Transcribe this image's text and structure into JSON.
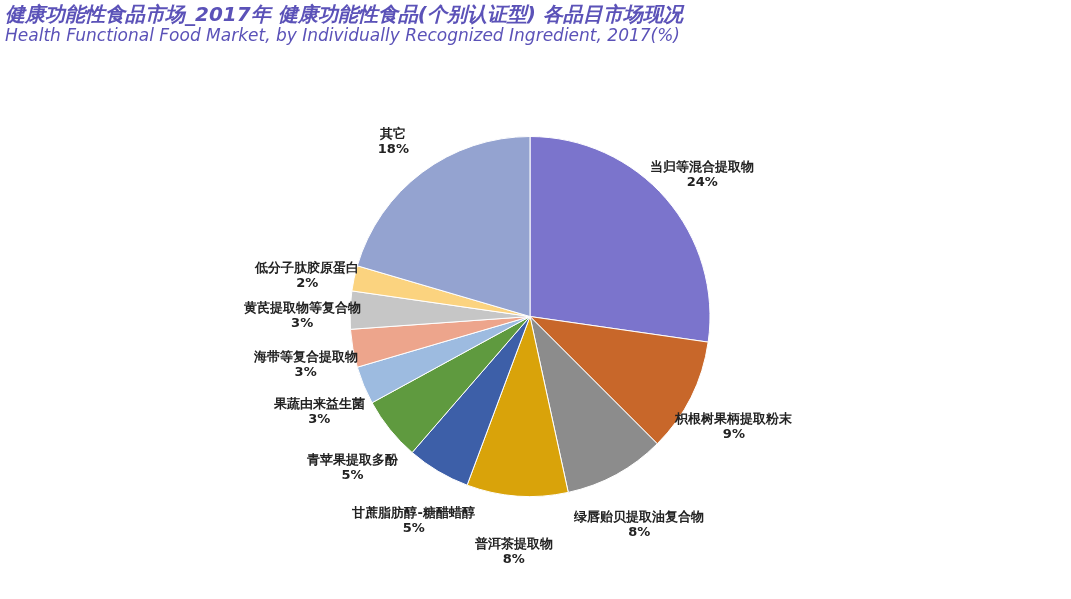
{
  "chart_data": {
    "type": "pie",
    "title": "健康功能性食品市场_2017年 健康功能性食品(个别认证型) 各品目市场现况",
    "subtitle": "Health Functional Food Market, by Individually Recognized Ingredient, 2017(%)",
    "categories": [
      "当归等混合提取物",
      "枳根树果柄提取粉末",
      "绿唇贻贝提取油复合物",
      "普洱茶提取物",
      "甘蔗脂肪醇-糖醋蜡醇",
      "青苹果提取多酚",
      "果蔬由来益生菌",
      "海带等复合提取物",
      "黄芪提取物等复合物",
      "低分子肽胶原蛋白",
      "其它"
    ],
    "values": [
      24,
      9,
      8,
      8,
      5,
      5,
      3,
      3,
      3,
      2,
      18
    ],
    "colors": [
      "#7b74cc",
      "#c8672a",
      "#8c8c8c",
      "#d9a30a",
      "#3d5fa8",
      "#5f9a3f",
      "#9dbbe0",
      "#eda58c",
      "#c6c6c6",
      "#fbd37f",
      "#94a3d0"
    ],
    "value_labels": [
      "24%",
      "9%",
      "8%",
      "8%",
      "5%",
      "5%",
      "3%",
      "3%",
      "3%",
      "2%",
      "18%"
    ],
    "legend": false
  }
}
